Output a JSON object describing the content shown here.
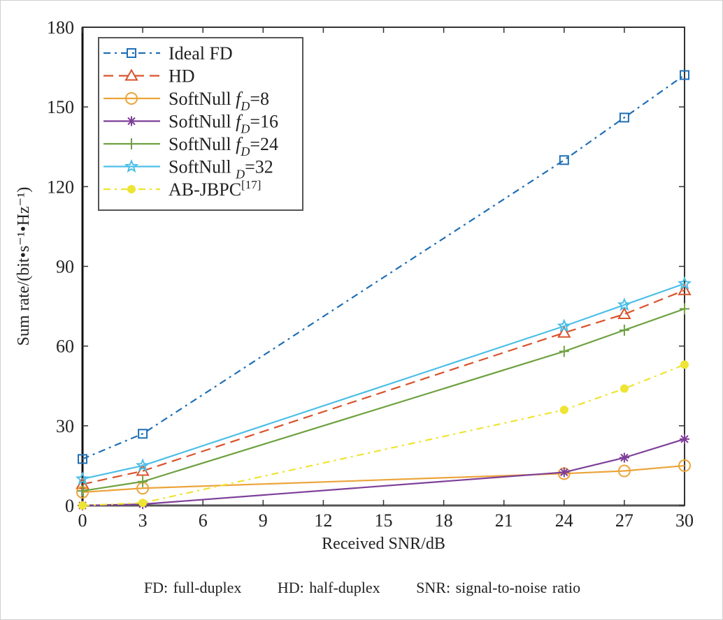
{
  "chart_data": {
    "type": "line",
    "title": "",
    "xlabel": "Received SNR/dB",
    "ylabel": "Sum rate/(bit•s⁻¹•Hz⁻¹)",
    "xlim": [
      0,
      30
    ],
    "ylim": [
      0,
      180
    ],
    "xticks": [
      0,
      3,
      6,
      9,
      12,
      15,
      18,
      21,
      24,
      27,
      30
    ],
    "yticks": [
      0,
      30,
      60,
      90,
      120,
      150,
      180
    ],
    "grid": false,
    "legend_position": "top-left",
    "x": [
      0,
      3,
      24,
      27,
      30
    ],
    "series": [
      {
        "name": "Ideal FD",
        "values": [
          17.5,
          27,
          130,
          146,
          162
        ],
        "color": "#1f6fb5",
        "dash": "dashdot",
        "marker": "square"
      },
      {
        "name": "HD",
        "values": [
          8,
          13,
          65,
          72,
          81
        ],
        "color": "#d9532b",
        "dash": "dash",
        "marker": "triangle"
      },
      {
        "name": "SoftNull f_D=8",
        "values": [
          5,
          6.5,
          12,
          13,
          15
        ],
        "color": "#eba43a",
        "dash": "solid",
        "marker": "circle"
      },
      {
        "name": "SoftNull f_D=16",
        "values": [
          0,
          0.5,
          12.5,
          18,
          25
        ],
        "color": "#7e3f98",
        "dash": "solid",
        "marker": "asterisk"
      },
      {
        "name": "SoftNull f_D=24",
        "values": [
          5.5,
          9,
          58,
          66,
          74
        ],
        "color": "#6ea140",
        "dash": "solid",
        "marker": "plus"
      },
      {
        "name": "SoftNull _D=32",
        "values": [
          10,
          15,
          67.5,
          75.5,
          83.5
        ],
        "color": "#4dbfe6",
        "dash": "solid",
        "marker": "star"
      },
      {
        "name": "AB-JBPC[17]",
        "values": [
          0,
          1,
          36,
          44,
          53
        ],
        "color": "#eee433",
        "dash": "dashdot",
        "marker": "dot"
      }
    ],
    "legend_labels": [
      {
        "base": "Ideal FD",
        "sub": "",
        "after": ""
      },
      {
        "base": "HD",
        "sub": "",
        "after": ""
      },
      {
        "base": "SoftNull ",
        "f": "f",
        "sub": "D",
        "after": "=8"
      },
      {
        "base": "SoftNull ",
        "f": "f",
        "sub": "D",
        "after": "=16"
      },
      {
        "base": "SoftNull ",
        "f": "f",
        "sub": "D",
        "after": "=24"
      },
      {
        "base": "SoftNull ",
        "f": "",
        "sub": "D",
        "after": "=32"
      },
      {
        "base": "AB-JBPC",
        "sup": "[17]",
        "after": ""
      }
    ]
  },
  "caption": [
    "FD: full-duplex",
    "HD: half-duplex",
    "SNR: signal-to-noise ratio"
  ]
}
